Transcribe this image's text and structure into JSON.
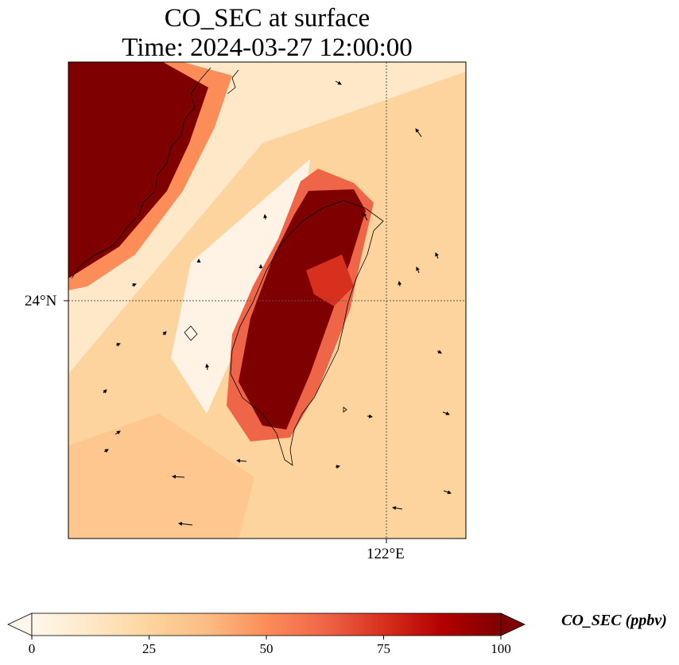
{
  "map": {
    "title_line1": "CO_SEC at surface",
    "title_line2": "Time: 2024-03-27 12:00:00",
    "lat_tick_label": "24°N",
    "lon_tick_label": "122°E",
    "variable": "CO_SEC",
    "gridlines": "dotted"
  },
  "colorbar": {
    "label": "CO_SEC (ppbv)",
    "ticks": [
      "0",
      "25",
      "50",
      "75",
      "100"
    ],
    "min": 0,
    "max": 100,
    "colormap": [
      "#fff7ec",
      "#fee8c8",
      "#fdd49e",
      "#fdbb84",
      "#fc8d59",
      "#ef6548",
      "#d7301f",
      "#b30000",
      "#7f0000"
    ],
    "extend": "both"
  }
}
